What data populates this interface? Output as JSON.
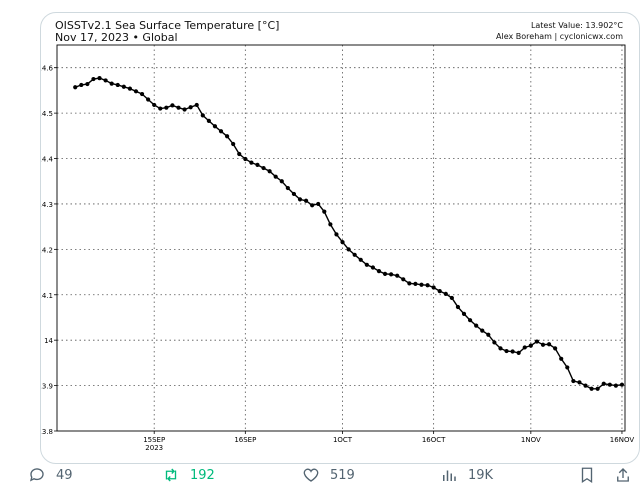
{
  "header": {
    "title": "OISSTv2.1 Sea Surface Temperature [°C]",
    "subtitle": "Nov 17, 2023 • Global",
    "latest": "Latest Value: 13.902°C",
    "credit": "Alex Boreham | cyclonicwx.com"
  },
  "chart_data": {
    "type": "line",
    "title": "OISSTv2.1 Sea Surface Temperature [°C]",
    "subtitle": "Nov 17, 2023 • Global",
    "ylim": [
      13.8,
      14.65
    ],
    "xlim": [
      -16,
      77.5
    ],
    "grid": true,
    "yticks": [
      13.8,
      13.9,
      14.0,
      14.1,
      14.2,
      14.3,
      14.4,
      14.5,
      14.6
    ],
    "ytick_labels": [
      "13.8",
      "13.9",
      "14",
      "14.1",
      "14.2",
      "14.3",
      "14.4",
      "14.5",
      "14.6"
    ],
    "xticks": [
      0,
      15,
      31,
      46,
      62,
      77
    ],
    "xtick_labels": [
      [
        "15SEP",
        "2023"
      ],
      [
        "16SEP"
      ],
      [
        "1OCT"
      ],
      [
        "16OCT"
      ],
      [
        "1NOV"
      ],
      [
        "16NOV"
      ]
    ],
    "series": [
      {
        "color": "#000000",
        "x": [
          -13,
          -12,
          -11,
          -10,
          -9,
          -8,
          -7,
          -6,
          -5,
          -4,
          -3,
          -2,
          -1,
          0,
          1,
          2,
          3,
          4,
          5,
          6,
          7,
          8,
          9,
          10,
          11,
          12,
          13,
          14,
          15,
          16,
          17,
          18,
          19,
          20,
          21,
          22,
          23,
          24,
          25,
          26,
          27,
          28,
          29,
          30,
          31,
          32,
          33,
          34,
          35,
          36,
          37,
          38,
          39,
          40,
          41,
          42,
          43,
          44,
          45,
          46,
          47,
          48,
          49,
          50,
          51,
          52,
          53,
          54,
          55,
          56,
          57,
          58,
          59,
          60,
          61,
          62,
          63,
          64,
          65,
          66,
          67,
          68,
          69,
          70,
          71,
          72,
          73,
          74,
          75,
          76,
          77
        ],
        "values": [
          14.557,
          14.562,
          14.564,
          14.575,
          14.577,
          14.572,
          14.565,
          14.562,
          14.558,
          14.554,
          14.548,
          14.542,
          14.53,
          14.518,
          14.51,
          14.512,
          14.517,
          14.512,
          14.508,
          14.513,
          14.518,
          14.495,
          14.483,
          14.471,
          14.46,
          14.449,
          14.432,
          14.41,
          14.399,
          14.391,
          14.386,
          14.379,
          14.372,
          14.36,
          14.35,
          14.335,
          14.322,
          14.31,
          14.307,
          14.297,
          14.3,
          14.283,
          14.255,
          14.233,
          14.216,
          14.2,
          14.188,
          14.177,
          14.166,
          14.16,
          14.152,
          14.146,
          14.145,
          14.142,
          14.134,
          14.125,
          14.124,
          14.122,
          14.121,
          14.116,
          14.108,
          14.102,
          14.093,
          14.073,
          14.058,
          14.044,
          14.032,
          14.021,
          14.012,
          13.995,
          13.982,
          13.976,
          13.975,
          13.972,
          13.984,
          13.988,
          13.997,
          13.99,
          13.991,
          13.982,
          13.959,
          13.94,
          13.91,
          13.907,
          13.9,
          13.893,
          13.893,
          13.904,
          13.902,
          13.9,
          13.902
        ]
      }
    ]
  },
  "actions": {
    "reply_count": "49",
    "repost_count": "192",
    "like_count": "519",
    "view_count": "19K"
  }
}
